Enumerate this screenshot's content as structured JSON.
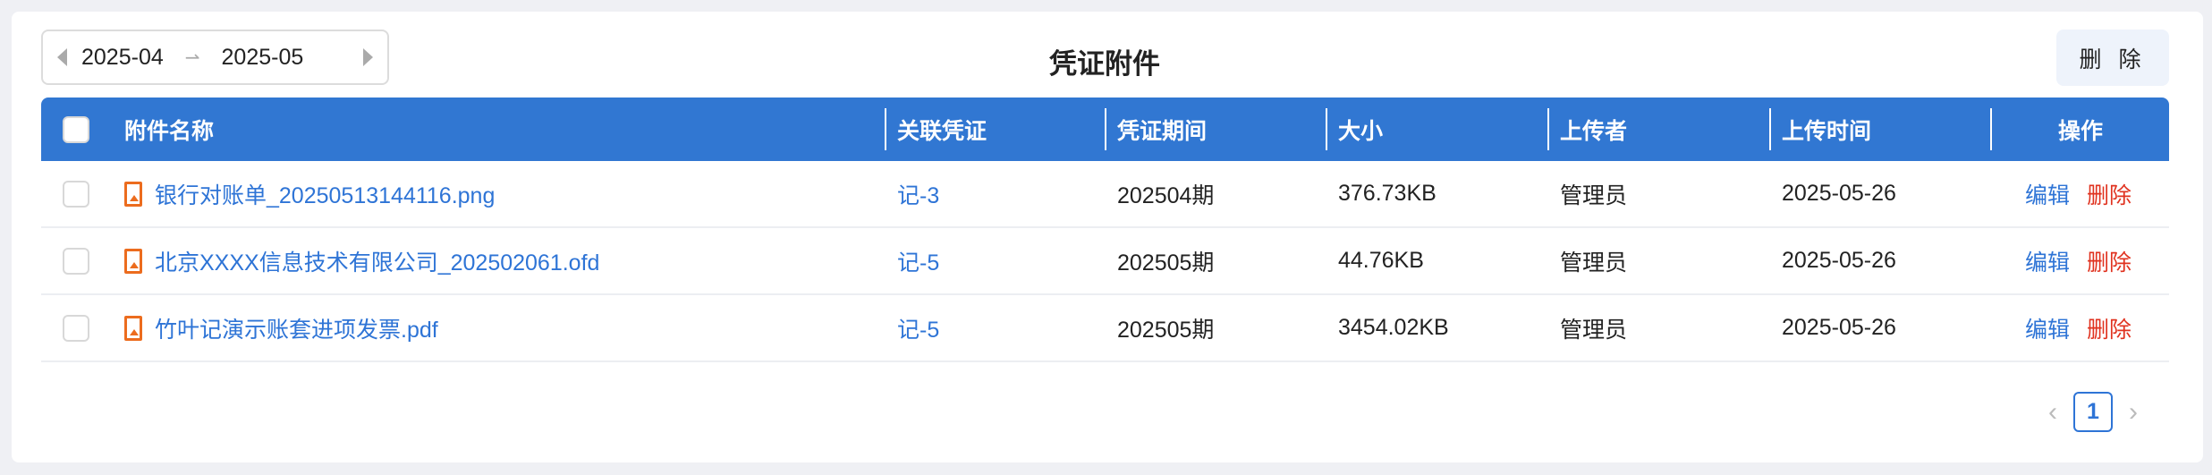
{
  "toolbar": {
    "date_start": "2025-04",
    "date_end": "2025-05",
    "separator": "⇀",
    "title": "凭证附件",
    "delete_label": "删 除"
  },
  "table": {
    "headers": [
      "附件名称",
      "关联凭证",
      "凭证期间",
      "大小",
      "上传者",
      "上传时间",
      "操作"
    ],
    "rows": [
      {
        "name": "银行对账单_20250513144116.png",
        "voucher": "记-3",
        "period": "202504期",
        "size": "376.73KB",
        "uploader": "管理员",
        "time": "2025-05-26",
        "edit": "编辑",
        "delete": "删除",
        "icon": "image-file-icon"
      },
      {
        "name": "北京XXXX信息技术有限公司_202502061.ofd",
        "voucher": "记-5",
        "period": "202505期",
        "size": "44.76KB",
        "uploader": "管理员",
        "time": "2025-05-26",
        "edit": "编辑",
        "delete": "删除",
        "icon": "pdf-file-icon"
      },
      {
        "name": "竹叶记演示账套进项发票.pdf",
        "voucher": "记-5",
        "period": "202505期",
        "size": "3454.02KB",
        "uploader": "管理员",
        "time": "2025-05-26",
        "edit": "编辑",
        "delete": "删除",
        "icon": "pdf-file-icon"
      }
    ]
  },
  "pagination": {
    "current": "1",
    "prev": "‹",
    "next": "›"
  },
  "colors": {
    "header": "#3177d2",
    "link": "#2e74d6",
    "danger": "#e0321f",
    "file_icon": "#ec6c1e"
  }
}
